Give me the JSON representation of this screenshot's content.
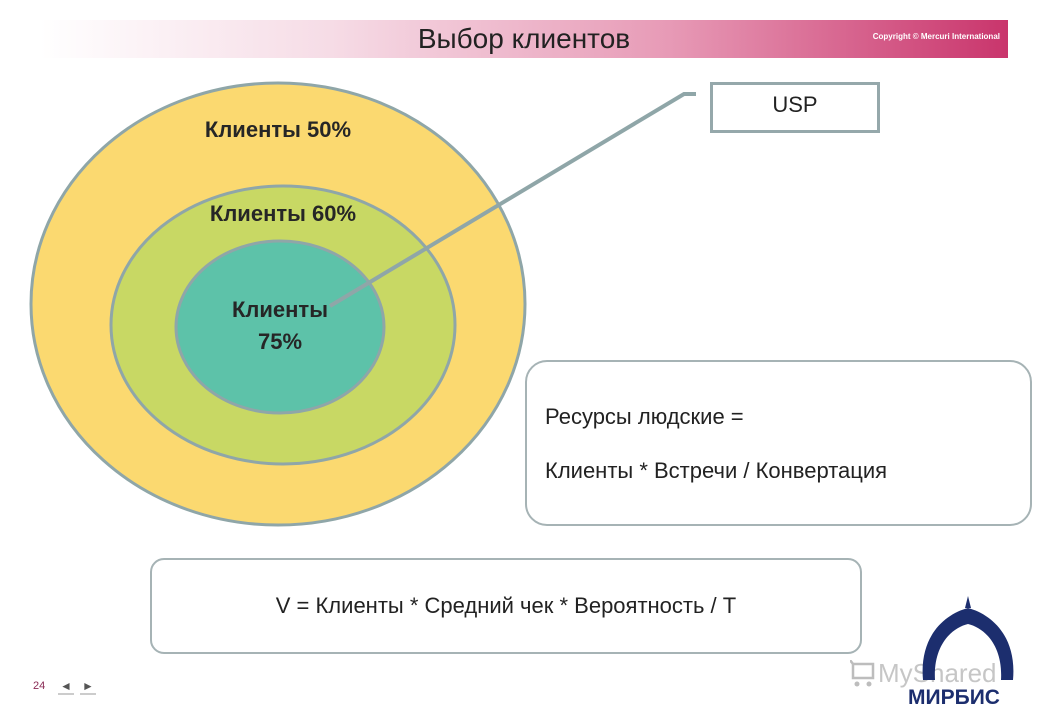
{
  "header": {
    "title": "Выбор клиентов",
    "copyright": "Copyright © Mercuri International"
  },
  "diagram": {
    "outer_label": "Клиенты 50%",
    "middle_label": "Клиенты 60%",
    "inner_label_line1": "Клиенты",
    "inner_label_line2": "75%",
    "colors": {
      "outer": "#fbd970",
      "middle": "#c8d864",
      "inner": "#5dc2a9",
      "stroke": "#8fa6a8"
    }
  },
  "usp_box": {
    "label": "USP"
  },
  "resources_box": {
    "line1": "Ресурсы  людские =",
    "line2": "Клиенты * Встречи / Конвертация"
  },
  "formula_box": {
    "text": "V = Клиенты * Средний чек * Вероятность / T"
  },
  "footer": {
    "page_number": "24",
    "prev_icon": "◄",
    "next_icon": "►",
    "watermark": "MyShared",
    "logo_text": "МИРБИС"
  }
}
